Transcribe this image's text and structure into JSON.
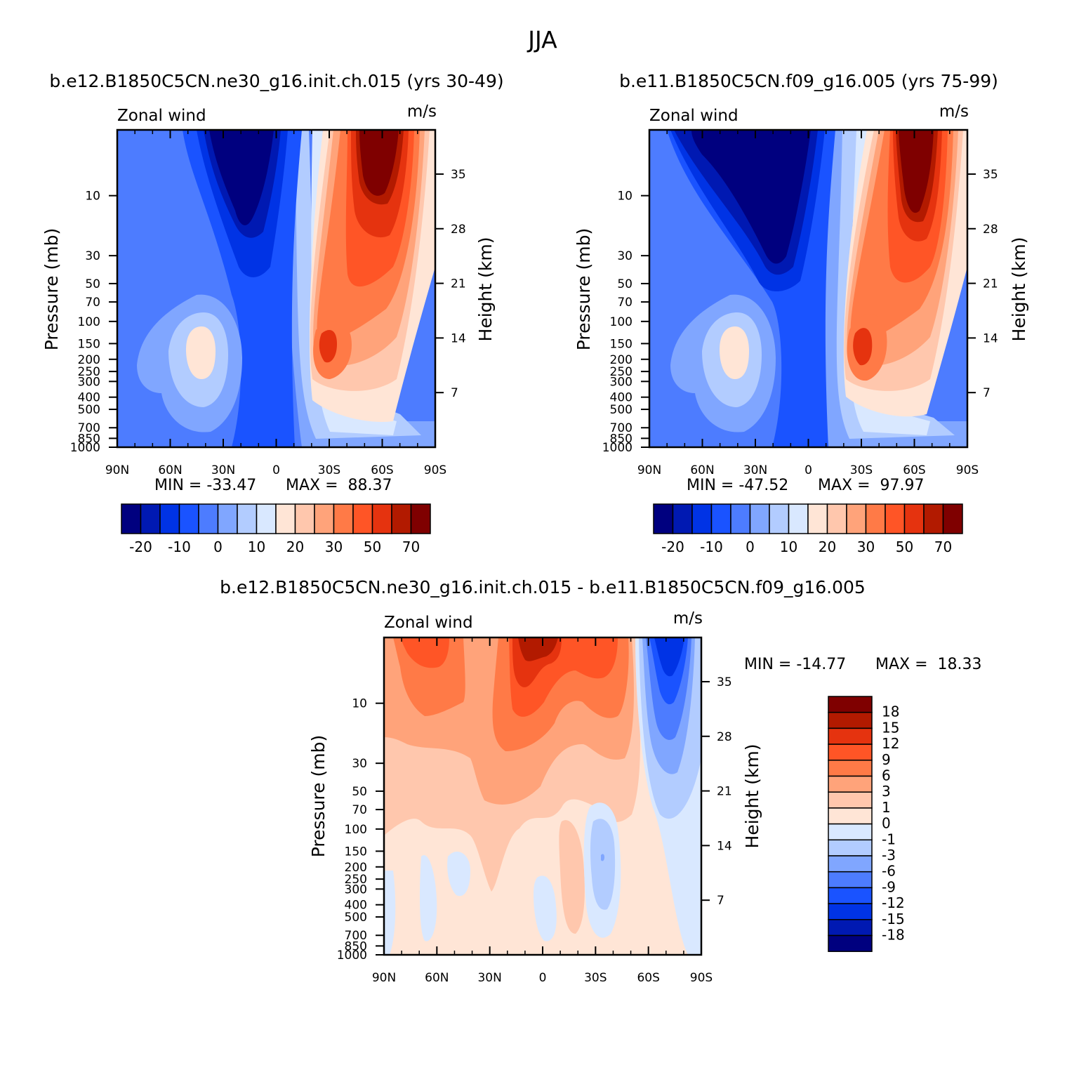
{
  "figure_title": "JJA",
  "colors": {
    "abs": [
      "#00007f",
      "#0019b2",
      "#0033e5",
      "#1a53ff",
      "#4d7cff",
      "#80a6ff",
      "#b2ccff",
      "#d9e8ff",
      "#ffe5d6",
      "#ffc7ad",
      "#ffa37a",
      "#ff7a47",
      "#ff5526",
      "#e5330f",
      "#b21a00",
      "#7f0000"
    ],
    "diff": [
      "#00007f",
      "#0019b2",
      "#0033e5",
      "#1a53ff",
      "#4d7cff",
      "#80a6ff",
      "#b2ccff",
      "#d9e8ff",
      "#ffe5d6",
      "#ffc7ad",
      "#ffa37a",
      "#ff7a47",
      "#ff5526",
      "#e5330f",
      "#b21a00",
      "#7f0000"
    ]
  },
  "chart_data": [
    {
      "type": "heatmap",
      "title": "b.e12.B1850C5CN.ne30_g16.init.ch.015 (yrs 30-49)",
      "left_string": "Zonal wind",
      "right_string": "m/s",
      "xlabel": "",
      "ylabel": "Pressure (mb)",
      "ylabel_right": "Height (km)",
      "x_ticks": [
        "90N",
        "60N",
        "30N",
        "0",
        "30S",
        "60S",
        "90S"
      ],
      "x_values": [
        90,
        60,
        30,
        0,
        -30,
        -60,
        -90
      ],
      "y_ticks": [
        "10",
        "30",
        "50",
        "70",
        "100",
        "150",
        "200",
        "250",
        "300",
        "400",
        "500",
        "700",
        "850",
        "1000"
      ],
      "y_values": [
        10,
        30,
        50,
        70,
        100,
        150,
        200,
        250,
        300,
        400,
        500,
        700,
        850,
        1000
      ],
      "ylim": [
        1000,
        3
      ],
      "height_ticks": [
        "35",
        "28",
        "21",
        "14",
        "7"
      ],
      "height_values": [
        35,
        28,
        21,
        14,
        7
      ],
      "min_label": "MIN = -33.47",
      "max_label": "MAX =  88.37",
      "min": -33.47,
      "max": 88.37,
      "levels": [
        -25,
        -20,
        -15,
        -10,
        -5,
        0,
        5,
        10,
        15,
        20,
        25,
        30,
        40,
        50,
        60,
        70,
        80
      ],
      "colorbar_labels": [
        "-20",
        "-10",
        "0",
        "10",
        "20",
        "30",
        "50",
        "70"
      ],
      "features": [
        {
          "kind": "easterly_jet",
          "lat": -0.5,
          "p": 3,
          "value": -33.47
        },
        {
          "kind": "westerly_jet",
          "lat": -60,
          "p": 3,
          "value": 88.37
        },
        {
          "kind": "subtropical_jet",
          "lat": -28,
          "p": 200,
          "value": 45
        },
        {
          "kind": "subtropical_jet",
          "lat": 43,
          "p": 200,
          "value": 17
        }
      ]
    },
    {
      "type": "heatmap",
      "title": "b.e11.B1850C5CN.f09_g16.005 (yrs 75-99)",
      "left_string": "Zonal wind",
      "right_string": "m/s",
      "xlabel": "",
      "ylabel": "Pressure (mb)",
      "ylabel_right": "Height (km)",
      "x_ticks": [
        "90N",
        "60N",
        "30N",
        "0",
        "30S",
        "60S",
        "90S"
      ],
      "x_values": [
        90,
        60,
        30,
        0,
        -30,
        -60,
        -90
      ],
      "y_ticks": [
        "10",
        "30",
        "50",
        "70",
        "100",
        "150",
        "200",
        "250",
        "300",
        "400",
        "500",
        "700",
        "850",
        "1000"
      ],
      "y_values": [
        10,
        30,
        50,
        70,
        100,
        150,
        200,
        250,
        300,
        400,
        500,
        700,
        850,
        1000
      ],
      "ylim": [
        1000,
        3
      ],
      "height_ticks": [
        "35",
        "28",
        "21",
        "14",
        "7"
      ],
      "height_values": [
        35,
        28,
        21,
        14,
        7
      ],
      "min_label": "MIN = -47.52",
      "max_label": "MAX =  97.97",
      "min": -47.52,
      "max": 97.97,
      "levels": [
        -25,
        -20,
        -15,
        -10,
        -5,
        0,
        5,
        10,
        15,
        20,
        25,
        30,
        40,
        50,
        60,
        70,
        80
      ],
      "colorbar_labels": [
        "-20",
        "-10",
        "0",
        "10",
        "20",
        "30",
        "50",
        "70"
      ],
      "features": [
        {
          "kind": "easterly_jet",
          "lat": 20,
          "p": 3,
          "value": -47.52
        },
        {
          "kind": "westerly_jet",
          "lat": -60,
          "p": 3,
          "value": 97.97
        },
        {
          "kind": "subtropical_jet",
          "lat": -30,
          "p": 200,
          "value": 48
        },
        {
          "kind": "subtropical_jet",
          "lat": 43,
          "p": 200,
          "value": 17
        }
      ]
    },
    {
      "type": "heatmap",
      "title": "b.e12.B1850C5CN.ne30_g16.init.ch.015 - b.e11.B1850C5CN.f09_g16.005",
      "left_string": "Zonal wind",
      "right_string": "m/s",
      "xlabel": "",
      "ylabel": "Pressure (mb)",
      "ylabel_right": "Height (km)",
      "x_ticks": [
        "90N",
        "60N",
        "30N",
        "0",
        "30S",
        "60S",
        "90S"
      ],
      "x_values": [
        90,
        60,
        30,
        0,
        -30,
        -60,
        -90
      ],
      "y_ticks": [
        "10",
        "30",
        "50",
        "70",
        "100",
        "150",
        "200",
        "250",
        "300",
        "400",
        "500",
        "700",
        "850",
        "1000"
      ],
      "y_values": [
        10,
        30,
        50,
        70,
        100,
        150,
        200,
        250,
        300,
        400,
        500,
        700,
        850,
        1000
      ],
      "ylim": [
        1000,
        3
      ],
      "height_ticks": [
        "35",
        "28",
        "21",
        "14",
        "7"
      ],
      "height_values": [
        35,
        28,
        21,
        14,
        7
      ],
      "min_label": "MIN = -14.77",
      "max_label": "MAX =  18.33",
      "min": -14.77,
      "max": 18.33,
      "levels": [
        -21,
        -18,
        -15,
        -12,
        -9,
        -6,
        -3,
        -1,
        0,
        1,
        3,
        6,
        9,
        12,
        15,
        18,
        21
      ],
      "colorbar_labels": [
        "18",
        "15",
        "12",
        "9",
        "6",
        "3",
        "1",
        "0",
        "-1",
        "-3",
        "-6",
        "-9",
        "-12",
        "-15",
        "-18"
      ],
      "features": [
        {
          "kind": "max",
          "lat": 10,
          "p": 3,
          "value": 18.33
        },
        {
          "kind": "max",
          "lat": 70,
          "p": 3,
          "value": 15
        },
        {
          "kind": "min",
          "lat": -62,
          "p": 5,
          "value": -14.77
        },
        {
          "kind": "min",
          "lat": -33,
          "p": 200,
          "value": -5
        }
      ]
    }
  ]
}
